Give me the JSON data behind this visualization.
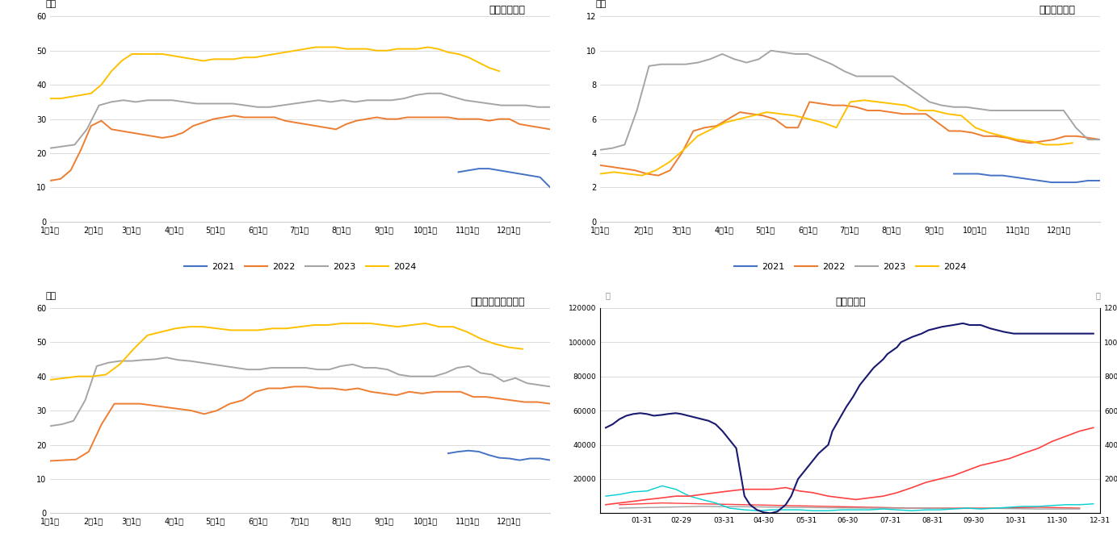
{
  "chart1_title": "华东样本库存",
  "chart2_title": "华南样本库存",
  "chart3_title": "华东华南样本总库存",
  "chart4_title": "注册仓单量",
  "ylabel_wanton": "万吨",
  "colors": {
    "2021": "#4472C4",
    "2022": "#ED7D31",
    "2023": "#A5A5A5",
    "2024": "#FFC000"
  },
  "bg_color": "#FFFFFF",
  "grid_color": "#CCCCCC",
  "chart1": {
    "2022": [
      12.0,
      12.5,
      15.0,
      21.0,
      28.0,
      29.5,
      27.0,
      26.5,
      26.0,
      25.5,
      25.0,
      24.5,
      25.0,
      26.0,
      28.0,
      29.0,
      30.0,
      30.5,
      31.0,
      30.5,
      30.5,
      30.5,
      30.5,
      29.5,
      29.0,
      28.5,
      28.0,
      27.5,
      27.0,
      28.5,
      29.5,
      30.0,
      30.5,
      30.0,
      30.0,
      30.5,
      30.5,
      30.5,
      30.5,
      30.5,
      30.0,
      30.0,
      30.0,
      29.5,
      30.0,
      30.0,
      28.5,
      28.0,
      27.5,
      27.0
    ],
    "2023": [
      21.5,
      22.0,
      22.5,
      27.0,
      34.0,
      35.0,
      35.5,
      35.0,
      35.5,
      35.5,
      35.5,
      35.0,
      34.5,
      34.5,
      34.5,
      34.5,
      34.0,
      33.5,
      33.5,
      34.0,
      34.5,
      35.0,
      35.5,
      35.0,
      35.5,
      35.0,
      35.5,
      35.5,
      35.5,
      36.0,
      37.0,
      37.5,
      37.5,
      36.5,
      35.5,
      35.0,
      34.5,
      34.0,
      34.0,
      34.0,
      33.5,
      33.5
    ],
    "2024": [
      36.0,
      36.0,
      36.5,
      37.0,
      37.5,
      40.0,
      44.0,
      47.0,
      49.0,
      49.0,
      49.0,
      49.0,
      48.5,
      48.0,
      47.5,
      47.0,
      47.5,
      47.5,
      47.5,
      48.0,
      48.0,
      48.5,
      49.0,
      49.5,
      50.0,
      50.5,
      51.0,
      51.0,
      51.0,
      50.5,
      50.5,
      50.5,
      50.0,
      50.0,
      50.5,
      50.5,
      50.5,
      51.0,
      50.5,
      49.5,
      49.0,
      48.0,
      46.5,
      45.0,
      44.0,
      null,
      null,
      null,
      null,
      null
    ],
    "2021": [
      null,
      null,
      null,
      null,
      null,
      null,
      null,
      null,
      null,
      null,
      null,
      null,
      null,
      null,
      null,
      null,
      null,
      null,
      null,
      null,
      null,
      null,
      null,
      null,
      null,
      null,
      null,
      null,
      null,
      null,
      null,
      null,
      null,
      null,
      null,
      null,
      null,
      null,
      null,
      null,
      14.5,
      15.0,
      15.5,
      15.5,
      15.0,
      14.5,
      14.0,
      13.5,
      13.0,
      10.0
    ]
  },
  "chart2": {
    "2022": [
      3.3,
      3.2,
      3.1,
      3.0,
      2.8,
      2.7,
      3.0,
      4.0,
      5.3,
      5.5,
      5.6,
      6.0,
      6.4,
      6.3,
      6.2,
      6.0,
      5.5,
      5.5,
      7.0,
      6.9,
      6.8,
      6.8,
      6.7,
      6.5,
      6.5,
      6.4,
      6.3,
      6.3,
      6.3,
      5.8,
      5.3,
      5.3,
      5.2,
      5.0,
      5.0,
      4.9,
      4.7,
      4.6,
      4.7,
      4.8,
      5.0,
      5.0,
      4.9,
      4.8
    ],
    "2023": [
      4.2,
      4.3,
      4.5,
      6.5,
      9.1,
      9.2,
      9.2,
      9.2,
      9.3,
      9.5,
      9.8,
      9.5,
      9.3,
      9.5,
      10.0,
      9.9,
      9.8,
      9.8,
      9.5,
      9.2,
      8.8,
      8.5,
      8.5,
      8.5,
      8.5,
      8.0,
      7.5,
      7.0,
      6.8,
      6.7,
      6.7,
      6.6,
      6.5,
      6.5,
      6.5,
      6.5,
      6.5,
      6.5,
      6.5,
      5.5,
      4.8,
      4.8
    ],
    "2024": [
      2.8,
      2.9,
      2.8,
      2.7,
      3.0,
      3.5,
      4.2,
      5.0,
      5.4,
      5.8,
      6.0,
      6.2,
      6.4,
      6.3,
      6.2,
      6.0,
      5.8,
      5.5,
      7.0,
      7.1,
      7.0,
      6.9,
      6.8,
      6.5,
      6.5,
      6.3,
      6.2,
      5.5,
      5.2,
      5.0,
      4.8,
      4.7,
      4.5,
      4.5,
      4.6,
      null,
      null
    ],
    "2021": [
      null,
      null,
      null,
      null,
      null,
      null,
      null,
      null,
      null,
      null,
      null,
      null,
      null,
      null,
      null,
      null,
      null,
      null,
      null,
      null,
      null,
      null,
      null,
      null,
      null,
      null,
      null,
      null,
      null,
      2.8,
      2.8,
      2.8,
      2.7,
      2.7,
      2.6,
      2.5,
      2.4,
      2.3,
      2.3,
      2.3,
      2.4,
      2.4
    ]
  },
  "chart3": {
    "2022": [
      15.3,
      15.5,
      15.7,
      18.0,
      26.0,
      32.0,
      32.0,
      32.0,
      31.5,
      31.0,
      30.5,
      30.0,
      29.0,
      30.0,
      32.0,
      33.0,
      35.5,
      36.5,
      36.5,
      37.0,
      37.0,
      36.5,
      36.5,
      36.0,
      36.5,
      35.5,
      35.0,
      34.5,
      35.5,
      35.0,
      35.5,
      35.5,
      35.5,
      34.0,
      34.0,
      33.5,
      33.0,
      32.5,
      32.5,
      32.0
    ],
    "2023": [
      25.5,
      26.0,
      27.0,
      33.0,
      43.0,
      44.0,
      44.5,
      44.5,
      44.8,
      45.0,
      45.5,
      44.8,
      44.5,
      44.0,
      43.5,
      43.0,
      42.5,
      42.0,
      42.0,
      42.5,
      42.5,
      42.5,
      42.5,
      42.0,
      42.0,
      43.0,
      43.5,
      42.5,
      42.5,
      42.0,
      40.5,
      40.0,
      40.0,
      40.0,
      41.0,
      42.5,
      43.0,
      41.0,
      40.5,
      38.5,
      39.5,
      38.0,
      37.5,
      37.0
    ],
    "2024": [
      39.0,
      39.5,
      40.0,
      40.0,
      40.5,
      43.5,
      48.0,
      52.0,
      53.0,
      54.0,
      54.5,
      54.5,
      54.0,
      53.5,
      53.5,
      53.5,
      54.0,
      54.0,
      54.5,
      55.0,
      55.0,
      55.5,
      55.5,
      55.5,
      55.0,
      54.5,
      55.0,
      55.5,
      54.5,
      54.5,
      53.0,
      51.0,
      49.5,
      48.5,
      48.0,
      null,
      null
    ],
    "2021": [
      null,
      null,
      null,
      null,
      null,
      null,
      null,
      null,
      null,
      null,
      null,
      null,
      null,
      null,
      null,
      null,
      null,
      null,
      null,
      null,
      null,
      null,
      null,
      null,
      null,
      null,
      null,
      null,
      null,
      null,
      null,
      null,
      null,
      null,
      null,
      null,
      null,
      null,
      null,
      17.5,
      18.0,
      18.3,
      18.0,
      17.0,
      16.2,
      16.0,
      15.5,
      16.0,
      16.0,
      15.5
    ]
  },
  "c4_colors": {
    "2020": "#FF4040",
    "2021": "#A0A0A0",
    "2022": "#00CED1",
    "2023": "#FF4040",
    "2024": "#191970"
  },
  "chart4_xticklabels": [
    "01-31",
    "02-29",
    "03-31",
    "04-30",
    "05-31",
    "06-30",
    "07-31",
    "08-31",
    "09-30",
    "10-31",
    "11-30",
    "12-31"
  ],
  "chart4_2020_x": [
    15,
    46,
    75,
    106,
    136,
    167,
    197,
    228,
    258,
    289,
    320,
    350
  ],
  "chart4_2020_y": [
    5000,
    6000,
    5500,
    5000,
    4500,
    4000,
    3500,
    3000,
    3000,
    3000,
    3500,
    3000
  ],
  "chart4_2021_x": [
    15,
    46,
    75,
    106,
    136,
    167,
    197,
    228,
    258,
    289,
    320,
    350
  ],
  "chart4_2021_y": [
    3000,
    3500,
    4000,
    3800,
    3500,
    3200,
    3000,
    3000,
    2800,
    2800,
    2500,
    2500
  ],
  "chart4_2022_x": [
    5,
    15,
    25,
    35,
    46,
    56,
    66,
    75,
    85,
    95,
    106,
    116,
    126,
    136,
    146,
    156,
    167,
    177,
    187,
    197,
    207,
    217,
    228,
    238,
    248,
    258,
    268,
    278,
    289,
    299,
    309,
    320,
    330,
    340,
    350,
    360
  ],
  "chart4_2022_y": [
    10000,
    11000,
    12500,
    13000,
    16000,
    14000,
    10000,
    8000,
    6000,
    3000,
    2000,
    1500,
    2000,
    2000,
    2000,
    1500,
    1500,
    2000,
    2000,
    2000,
    2500,
    2000,
    1500,
    2000,
    2000,
    2500,
    3000,
    2500,
    3000,
    3500,
    4000,
    4000,
    4500,
    5000,
    5000,
    5500
  ],
  "chart4_2023_x": [
    5,
    15,
    25,
    35,
    46,
    56,
    66,
    75,
    85,
    95,
    106,
    116,
    126,
    136,
    146,
    156,
    167,
    177,
    187,
    197,
    207,
    217,
    228,
    238,
    248,
    258,
    268,
    278,
    289,
    299,
    309,
    320,
    330,
    340,
    350,
    360
  ],
  "chart4_2023_y": [
    5000,
    6000,
    7000,
    8000,
    9000,
    10000,
    10000,
    11000,
    12000,
    13000,
    14000,
    14000,
    14000,
    15000,
    13000,
    12000,
    10000,
    9000,
    8000,
    9000,
    10000,
    12000,
    15000,
    18000,
    20000,
    22000,
    25000,
    28000,
    30000,
    32000,
    35000,
    38000,
    42000,
    45000,
    48000,
    50000
  ],
  "chart4_2024_x": [
    5,
    10,
    15,
    20,
    25,
    30,
    35,
    40,
    46,
    50,
    56,
    60,
    65,
    70,
    75,
    80,
    85,
    90,
    95,
    100,
    106,
    110,
    115,
    120,
    125,
    130,
    136,
    140,
    145,
    150,
    155,
    160,
    167,
    170,
    175,
    180,
    185,
    190,
    197,
    200,
    207,
    210,
    217,
    220,
    228,
    235,
    240,
    245,
    250,
    258,
    265,
    270,
    278,
    285,
    290,
    295,
    302,
    310,
    320,
    330,
    340,
    350,
    360
  ],
  "chart4_2024_y": [
    50000,
    52000,
    55000,
    57000,
    58000,
    58500,
    58000,
    57000,
    57500,
    58000,
    58500,
    58000,
    57000,
    56000,
    55000,
    54000,
    52000,
    48000,
    43000,
    38000,
    10000,
    5000,
    2000,
    500,
    0,
    1000,
    5000,
    10000,
    20000,
    25000,
    30000,
    35000,
    40000,
    48000,
    55000,
    62000,
    68000,
    75000,
    82000,
    85000,
    90000,
    93000,
    97000,
    100000,
    103000,
    105000,
    107000,
    108000,
    109000,
    110000,
    111000,
    110000,
    110000,
    108000,
    107000,
    106000,
    105000,
    105000,
    105000,
    105000,
    105000,
    105000,
    105000
  ]
}
